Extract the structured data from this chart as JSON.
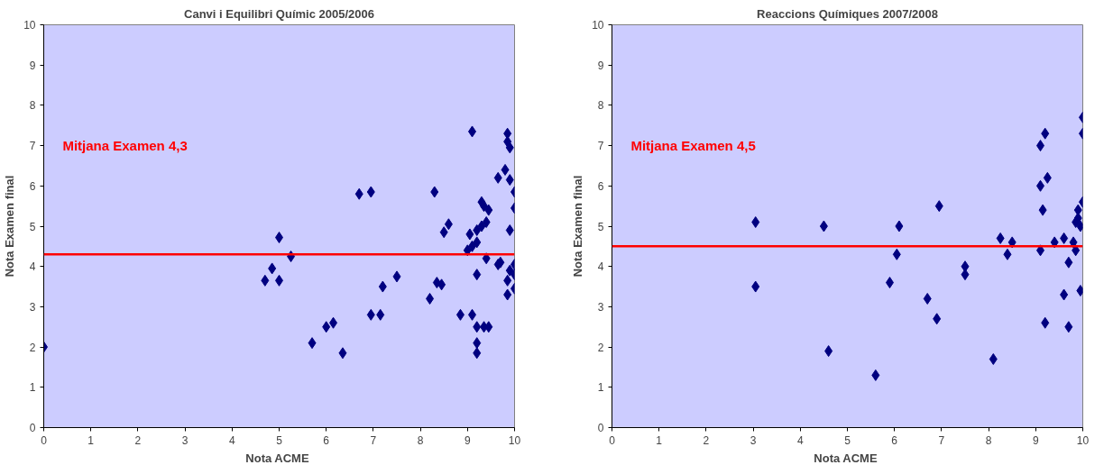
{
  "chart_data": [
    {
      "type": "scatter",
      "title": "Canvi i Equilibri Químic 2005/2006",
      "xlabel": "Nota  ACME",
      "ylabel": "Nota Examen final",
      "xlim": [
        0,
        10
      ],
      "ylim": [
        0,
        10
      ],
      "xticks": [
        0,
        1,
        2,
        3,
        4,
        5,
        6,
        7,
        8,
        9,
        10
      ],
      "yticks": [
        0,
        1,
        2,
        3,
        4,
        5,
        6,
        7,
        8,
        9,
        10
      ],
      "grid": false,
      "marker": "diamond",
      "series": [
        {
          "color": "#000080",
          "x": [
            0,
            4.7,
            4.85,
            5.0,
            5.0,
            5.25,
            5.7,
            6.0,
            6.15,
            6.35,
            6.7,
            6.95,
            6.95,
            7.15,
            7.2,
            7.5,
            8.2,
            8.3,
            8.35,
            8.45,
            8.5,
            8.6,
            8.85,
            9.05,
            9.0,
            9.1,
            9.1,
            9.1,
            9.2,
            9.2,
            9.2,
            9.2,
            9.2,
            9.2,
            9.3,
            9.3,
            9.35,
            9.4,
            9.4,
            9.35,
            9.45,
            9.45,
            9.65,
            9.7,
            9.65,
            9.85,
            9.85,
            9.9,
            9.8,
            9.9,
            9.9,
            9.85,
            9.85,
            10,
            10,
            10,
            10,
            10,
            9.9
          ],
          "values": [
            2.0,
            3.65,
            3.95,
            4.72,
            3.65,
            4.25,
            2.1,
            2.5,
            2.6,
            1.85,
            5.8,
            5.85,
            2.8,
            2.8,
            3.5,
            3.75,
            3.2,
            5.85,
            3.6,
            3.55,
            4.85,
            5.05,
            2.8,
            4.8,
            4.4,
            4.5,
            7.35,
            2.8,
            3.8,
            4.6,
            4.9,
            2.5,
            2.1,
            1.85,
            5.6,
            5.0,
            5.5,
            5.1,
            4.2,
            2.5,
            2.5,
            5.4,
            4.05,
            4.1,
            6.2,
            7.3,
            7.1,
            6.95,
            6.4,
            6.15,
            4.9,
            3.65,
            3.3,
            5.85,
            5.45,
            4.05,
            3.8,
            3.45,
            3.9
          ]
        }
      ],
      "ref_lines": [
        {
          "axis": "y",
          "value": 4.3,
          "label": "Mitjana Examen 4,3",
          "color": "#ff0000",
          "line_style": "solid"
        }
      ]
    },
    {
      "type": "scatter",
      "title": "Reaccions Químiques 2007/2008",
      "xlabel": "Nota  ACME",
      "ylabel": "Nota Examen final",
      "xlim": [
        0,
        10
      ],
      "ylim": [
        0,
        10
      ],
      "xticks": [
        0,
        1,
        2,
        3,
        4,
        5,
        6,
        7,
        8,
        9,
        10
      ],
      "yticks": [
        0,
        1,
        2,
        3,
        4,
        5,
        6,
        7,
        8,
        9,
        10
      ],
      "grid": false,
      "marker": "diamond",
      "series": [
        {
          "color": "#000080",
          "x": [
            3.05,
            3.05,
            4.5,
            4.6,
            5.6,
            5.9,
            6.05,
            6.1,
            6.7,
            6.9,
            6.95,
            7.5,
            7.5,
            8.1,
            8.25,
            8.4,
            8.5,
            9.1,
            9.1,
            9.15,
            9.1,
            9.2,
            9.2,
            9.25,
            9.4,
            9.6,
            9.6,
            9.7,
            9.7,
            9.8,
            9.85,
            9.85,
            9.9,
            9.9,
            9.95,
            9.95,
            10,
            10,
            10
          ],
          "values": [
            5.1,
            3.5,
            5.0,
            1.9,
            1.3,
            3.6,
            4.3,
            5.0,
            3.2,
            2.7,
            5.5,
            3.8,
            4.0,
            1.7,
            4.7,
            4.3,
            4.6,
            6.0,
            7.0,
            5.4,
            4.4,
            7.3,
            2.6,
            6.2,
            4.6,
            4.7,
            3.3,
            4.1,
            2.5,
            4.6,
            4.4,
            5.1,
            5.4,
            5.2,
            5.0,
            3.4,
            7.7,
            7.3,
            5.6
          ]
        }
      ],
      "ref_lines": [
        {
          "axis": "y",
          "value": 4.5,
          "label": "Mitjana Examen 4,5",
          "color": "#ff0000",
          "line_style": "solid"
        }
      ]
    }
  ]
}
